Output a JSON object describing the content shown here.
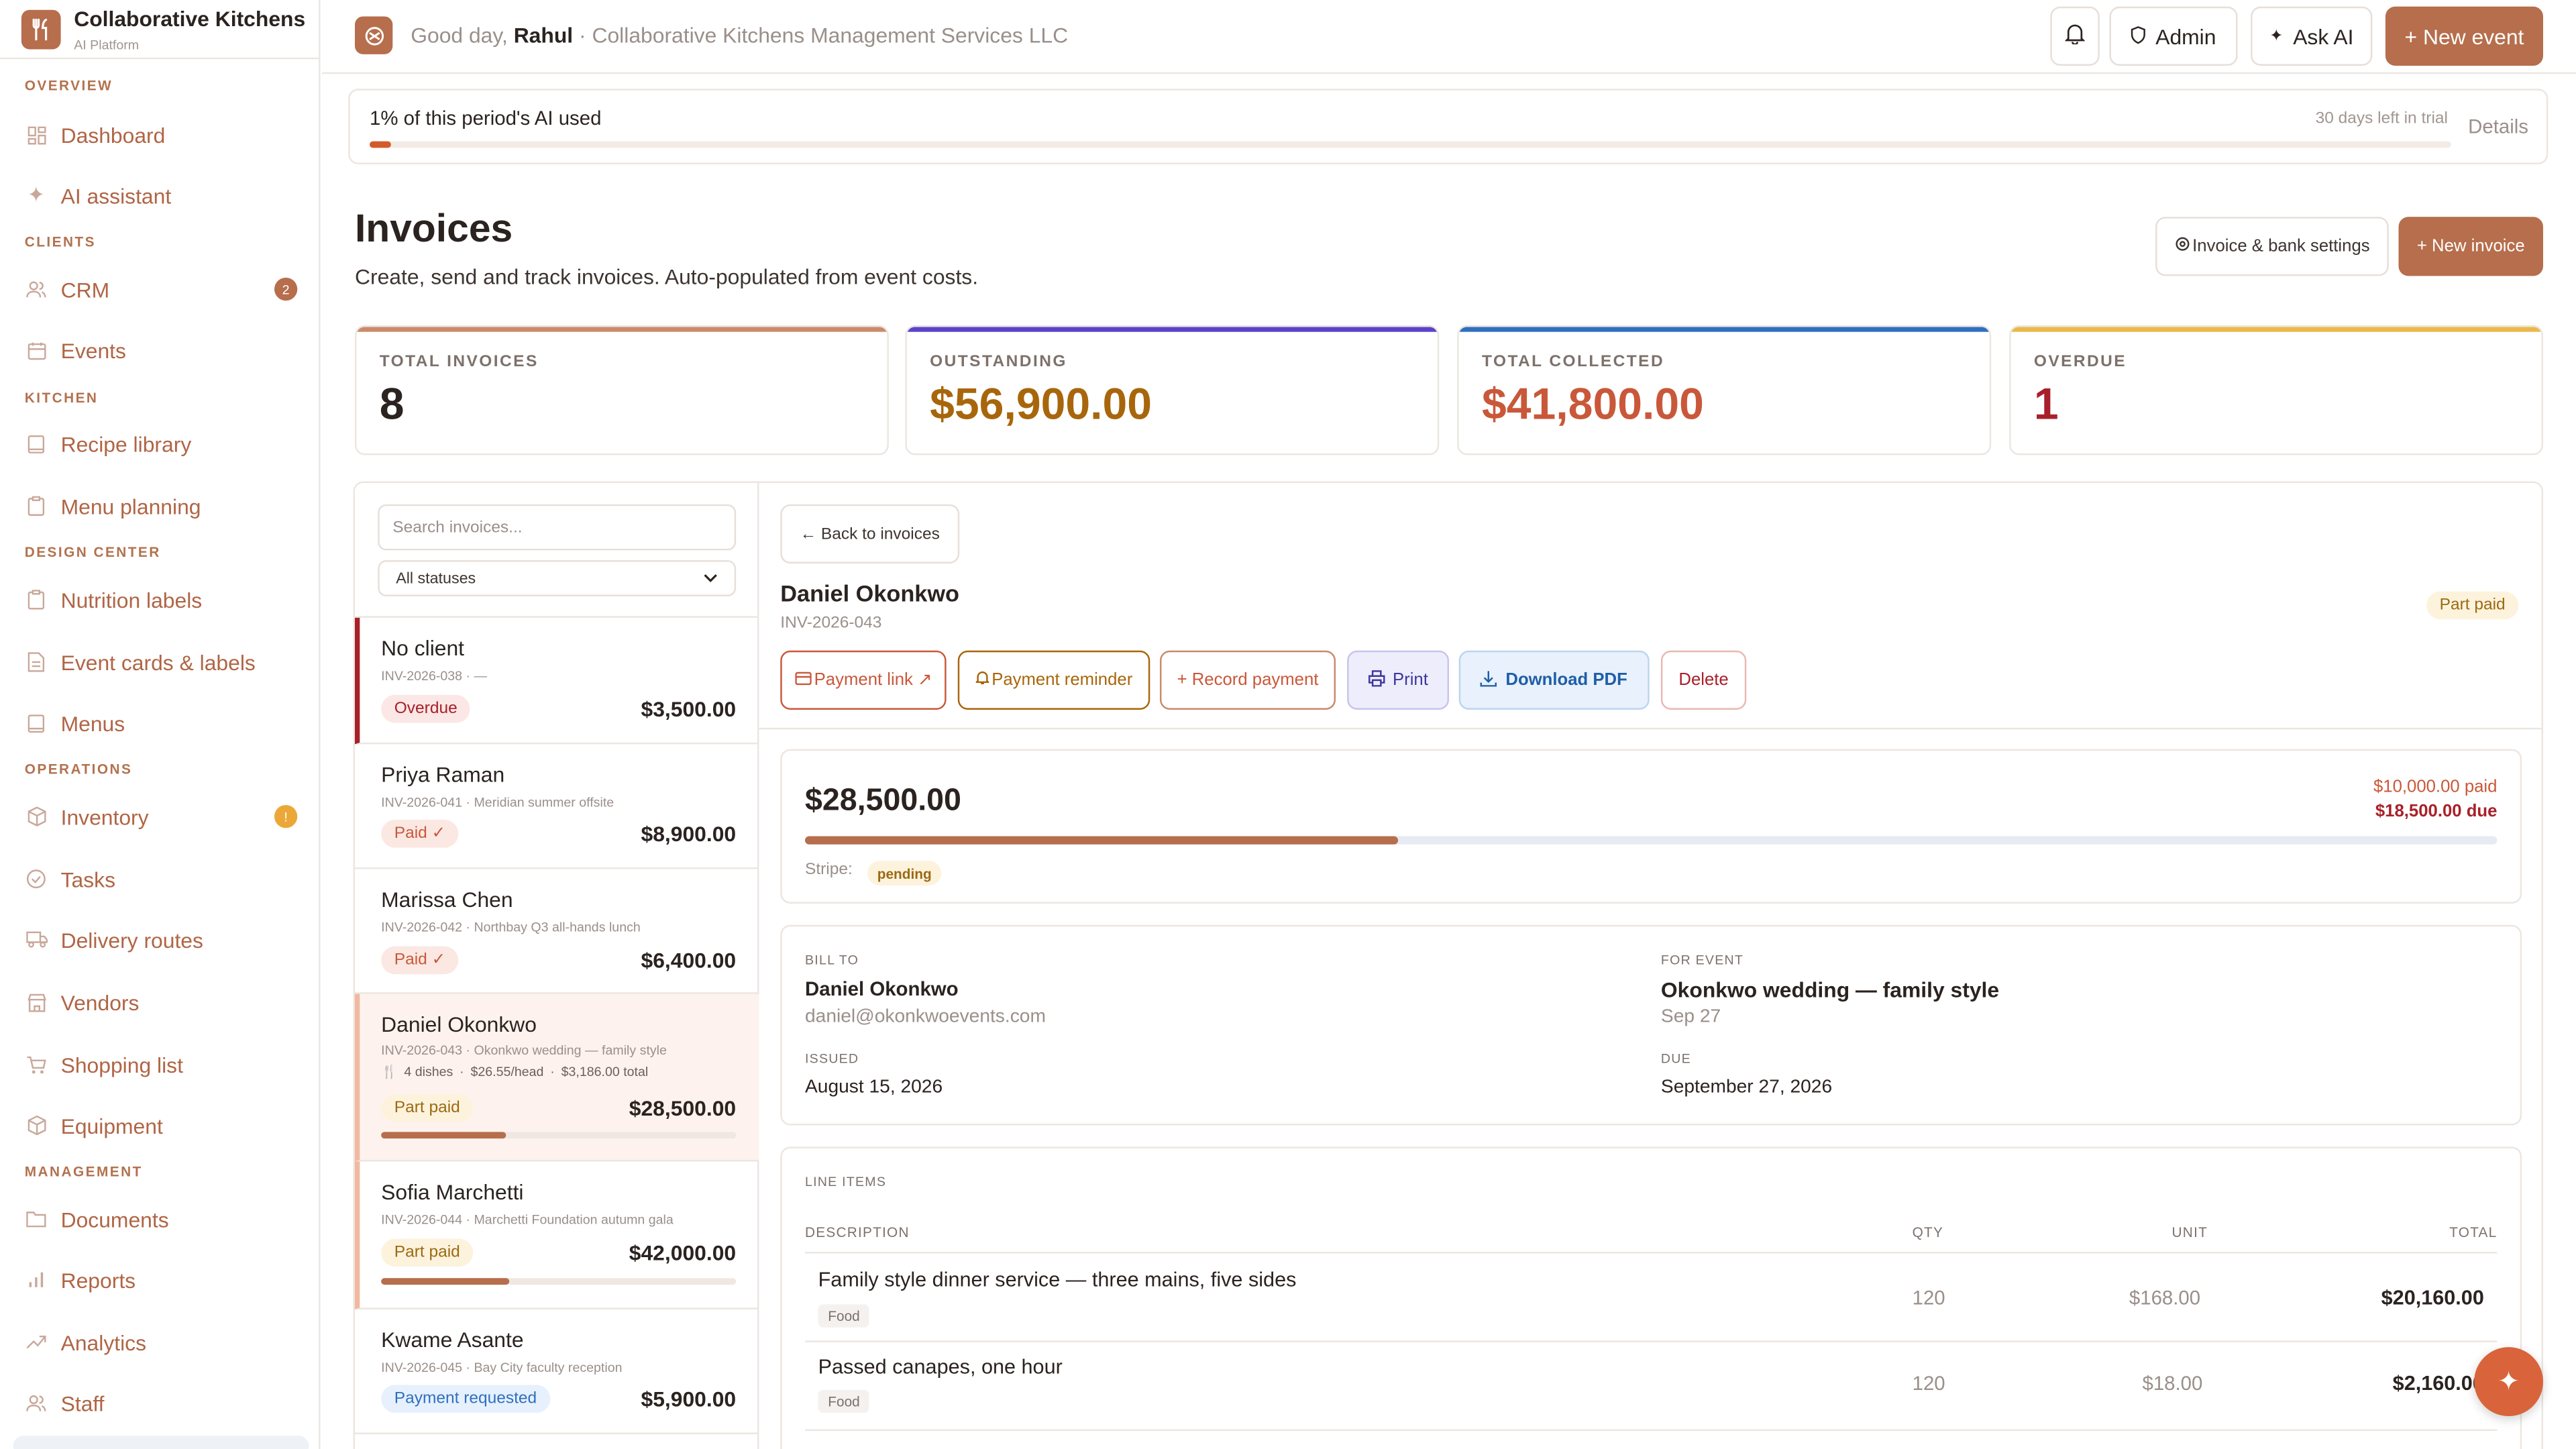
{
  "app": {
    "name": "Collaborative Kitchens",
    "subtitle": "AI Platform"
  },
  "sidebar": {
    "sections": [
      {
        "title": "OVERVIEW",
        "items": [
          {
            "label": "Dashboard",
            "icon": "dashboard-icon"
          },
          {
            "label": "AI assistant",
            "icon": "sparkle-icon"
          }
        ]
      },
      {
        "title": "CLIENTS",
        "items": [
          {
            "label": "CRM",
            "icon": "users-icon",
            "badge": "2"
          },
          {
            "label": "Events",
            "icon": "calendar-icon"
          }
        ]
      },
      {
        "title": "KITCHEN",
        "items": [
          {
            "label": "Recipe library",
            "icon": "book-icon"
          },
          {
            "label": "Menu planning",
            "icon": "clipboard-icon"
          }
        ]
      },
      {
        "title": "DESIGN CENTER",
        "items": [
          {
            "label": "Nutrition labels",
            "icon": "clipboard-icon"
          },
          {
            "label": "Event cards & labels",
            "icon": "document-icon"
          },
          {
            "label": "Menus",
            "icon": "book-icon"
          }
        ]
      },
      {
        "title": "OPERATIONS",
        "items": [
          {
            "label": "Inventory",
            "icon": "box-icon",
            "badge": "!"
          },
          {
            "label": "Tasks",
            "icon": "check-circle-icon"
          },
          {
            "label": "Delivery routes",
            "icon": "truck-icon"
          },
          {
            "label": "Vendors",
            "icon": "store-icon"
          },
          {
            "label": "Shopping list",
            "icon": "cart-icon"
          },
          {
            "label": "Equipment",
            "icon": "box-icon"
          }
        ]
      },
      {
        "title": "MANAGEMENT",
        "items": [
          {
            "label": "Documents",
            "icon": "folder-icon"
          },
          {
            "label": "Reports",
            "icon": "bar-chart-icon"
          },
          {
            "label": "Analytics",
            "icon": "trend-icon"
          },
          {
            "label": "Staff",
            "icon": "users-icon"
          }
        ]
      }
    ]
  },
  "header": {
    "greeting": "Good day,",
    "user": "Rahul",
    "company": "· Collaborative Kitchens Management Services LLC",
    "admin_label": "Admin",
    "ask_ai_label": "Ask AI",
    "new_event_label": "+ New event"
  },
  "usage": {
    "label": "1% of this period's AI used",
    "trial": "30 days left in trial",
    "details_label": "Details",
    "percent": 1
  },
  "page": {
    "title": "Invoices",
    "subtitle": "Create, send and track invoices. Auto-populated from event costs.",
    "settings_label": "Invoice & bank settings",
    "new_invoice_label": "+ New invoice"
  },
  "stats": [
    {
      "label": "TOTAL INVOICES",
      "value": "8",
      "color": "#2b2320",
      "accent": "#c98a6c"
    },
    {
      "label": "OUTSTANDING",
      "value": "$56,900.00",
      "color": "#a8660c",
      "accent": "#5b43c9"
    },
    {
      "label": "TOTAL COLLECTED",
      "value": "$41,800.00",
      "color": "#c9583a",
      "accent": "#2f6fbf"
    },
    {
      "label": "OVERDUE",
      "value": "1",
      "color": "#a8202a",
      "accent": "#e9b94a"
    }
  ],
  "list": {
    "search_placeholder": "Search invoices...",
    "status_filter": "All statuses",
    "items": [
      {
        "name": "No client",
        "meta": "INV-2026-038 · —",
        "status": "Overdue",
        "amount": "$3,500.00"
      },
      {
        "name": "Priya Raman",
        "meta": "INV-2026-041 · Meridian summer offsite",
        "status": "Paid ✓",
        "amount": "$8,900.00"
      },
      {
        "name": "Marissa Chen",
        "meta": "INV-2026-042 · Northbay Q3 all-hands lunch",
        "status": "Paid ✓",
        "amount": "$6,400.00"
      },
      {
        "name": "Daniel Okonkwo",
        "meta": "INV-2026-043 · Okonkwo wedding — family style",
        "dishes": "4 dishes",
        "per_head": "$26.55/head",
        "food_total": "$3,186.00 total",
        "status": "Part paid",
        "amount": "$28,500.00",
        "progress": 0.35
      },
      {
        "name": "Sofia Marchetti",
        "meta": "INV-2026-044 · Marchetti Foundation autumn gala",
        "status": "Part paid",
        "amount": "$42,000.00",
        "progress": 0.36
      },
      {
        "name": "Kwame Asante",
        "meta": "INV-2026-045 · Bay City faculty reception",
        "status": "Payment requested",
        "amount": "$5,900.00"
      }
    ]
  },
  "detail": {
    "back_label": "← Back to invoices",
    "client": "Daniel Okonkwo",
    "number": "INV-2026-043",
    "status": "Part paid",
    "actions": {
      "payment_link": "Payment link ↗",
      "reminder": "Payment reminder",
      "record": "+ Record payment",
      "print": "Print",
      "download": "Download PDF",
      "delete": "Delete"
    },
    "amount": "$28,500.00",
    "paid": "$10,000.00 paid",
    "due": "$18,500.00 due",
    "paid_fraction": 0.35,
    "stripe_label": "Stripe:",
    "stripe_status": "pending",
    "bill_to_label": "BILL TO",
    "bill_name": "Daniel Okonkwo",
    "bill_email": "daniel@okonkwoevents.com",
    "event_label": "FOR EVENT",
    "event_name": "Okonkwo wedding — family style",
    "event_date": "Sep 27",
    "issued_label": "ISSUED",
    "issued": "August 15, 2026",
    "due_label": "DUE",
    "due_date": "September 27, 2026",
    "line_items_label": "LINE ITEMS",
    "columns": [
      "DESCRIPTION",
      "QTY",
      "UNIT",
      "TOTAL"
    ],
    "lines": [
      {
        "description": "Family style dinner service — three mains, five sides",
        "tag": "Food",
        "qty": "120",
        "unit": "$168.00",
        "total": "$20,160.00"
      },
      {
        "description": "Passed canapes, one hour",
        "tag": "Food",
        "qty": "120",
        "unit": "$18.00",
        "total": "$2,160.00"
      }
    ]
  },
  "colors": {
    "accent": "#b66e4c",
    "fab": "#d9633a"
  }
}
